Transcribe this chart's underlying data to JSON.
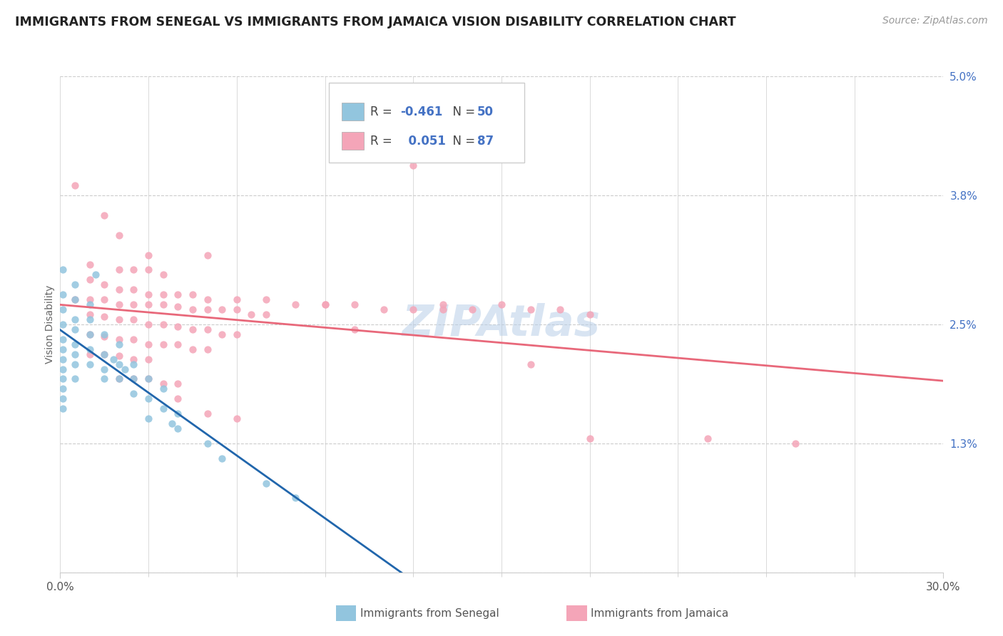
{
  "title": "IMMIGRANTS FROM SENEGAL VS IMMIGRANTS FROM JAMAICA VISION DISABILITY CORRELATION CHART",
  "source": "Source: ZipAtlas.com",
  "ylabel": "Vision Disability",
  "xlim": [
    0.0,
    0.3
  ],
  "ylim": [
    0.0,
    0.05
  ],
  "ytick_vals": [
    0.0,
    0.013,
    0.025,
    0.038,
    0.05
  ],
  "ytick_labels": [
    "",
    "1.3%",
    "2.5%",
    "3.8%",
    "5.0%"
  ],
  "xtick_vals": [
    0.0,
    0.3
  ],
  "xtick_labels": [
    "0.0%",
    "30.0%"
  ],
  "watermark": "ZIPAtlas",
  "senegal_color": "#92c5de",
  "jamaica_color": "#f4a5b8",
  "senegal_line_color": "#2166ac",
  "jamaica_line_color": "#e8687a",
  "R_senegal": -0.461,
  "N_senegal": 50,
  "R_jamaica": 0.051,
  "N_jamaica": 87,
  "senegal_scatter": [
    [
      0.001,
      0.0305
    ],
    [
      0.001,
      0.028
    ],
    [
      0.001,
      0.0265
    ],
    [
      0.001,
      0.025
    ],
    [
      0.001,
      0.0235
    ],
    [
      0.001,
      0.0225
    ],
    [
      0.001,
      0.0215
    ],
    [
      0.001,
      0.0205
    ],
    [
      0.001,
      0.0195
    ],
    [
      0.001,
      0.0185
    ],
    [
      0.001,
      0.0175
    ],
    [
      0.001,
      0.0165
    ],
    [
      0.005,
      0.029
    ],
    [
      0.005,
      0.0275
    ],
    [
      0.005,
      0.0255
    ],
    [
      0.005,
      0.0245
    ],
    [
      0.005,
      0.023
    ],
    [
      0.005,
      0.022
    ],
    [
      0.005,
      0.021
    ],
    [
      0.005,
      0.0195
    ],
    [
      0.01,
      0.027
    ],
    [
      0.01,
      0.0255
    ],
    [
      0.01,
      0.024
    ],
    [
      0.01,
      0.0225
    ],
    [
      0.01,
      0.021
    ],
    [
      0.012,
      0.03
    ],
    [
      0.015,
      0.024
    ],
    [
      0.015,
      0.022
    ],
    [
      0.015,
      0.0205
    ],
    [
      0.015,
      0.0195
    ],
    [
      0.018,
      0.0215
    ],
    [
      0.02,
      0.023
    ],
    [
      0.02,
      0.021
    ],
    [
      0.02,
      0.0195
    ],
    [
      0.022,
      0.0205
    ],
    [
      0.025,
      0.021
    ],
    [
      0.025,
      0.0195
    ],
    [
      0.025,
      0.018
    ],
    [
      0.03,
      0.0195
    ],
    [
      0.03,
      0.0175
    ],
    [
      0.03,
      0.0155
    ],
    [
      0.035,
      0.0185
    ],
    [
      0.035,
      0.0165
    ],
    [
      0.038,
      0.015
    ],
    [
      0.04,
      0.016
    ],
    [
      0.04,
      0.0145
    ],
    [
      0.05,
      0.013
    ],
    [
      0.055,
      0.0115
    ],
    [
      0.07,
      0.009
    ],
    [
      0.08,
      0.0075
    ]
  ],
  "jamaica_scatter": [
    [
      0.005,
      0.039
    ],
    [
      0.015,
      0.036
    ],
    [
      0.02,
      0.034
    ],
    [
      0.03,
      0.032
    ],
    [
      0.05,
      0.032
    ],
    [
      0.01,
      0.031
    ],
    [
      0.02,
      0.0305
    ],
    [
      0.025,
      0.0305
    ],
    [
      0.03,
      0.0305
    ],
    [
      0.035,
      0.03
    ],
    [
      0.01,
      0.0295
    ],
    [
      0.015,
      0.029
    ],
    [
      0.02,
      0.0285
    ],
    [
      0.025,
      0.0285
    ],
    [
      0.03,
      0.028
    ],
    [
      0.035,
      0.028
    ],
    [
      0.04,
      0.028
    ],
    [
      0.045,
      0.028
    ],
    [
      0.05,
      0.0275
    ],
    [
      0.06,
      0.0275
    ],
    [
      0.07,
      0.0275
    ],
    [
      0.08,
      0.027
    ],
    [
      0.09,
      0.027
    ],
    [
      0.1,
      0.027
    ],
    [
      0.11,
      0.0265
    ],
    [
      0.12,
      0.0265
    ],
    [
      0.13,
      0.0265
    ],
    [
      0.005,
      0.0275
    ],
    [
      0.01,
      0.0275
    ],
    [
      0.015,
      0.0275
    ],
    [
      0.02,
      0.027
    ],
    [
      0.025,
      0.027
    ],
    [
      0.03,
      0.027
    ],
    [
      0.035,
      0.027
    ],
    [
      0.04,
      0.0268
    ],
    [
      0.045,
      0.0265
    ],
    [
      0.05,
      0.0265
    ],
    [
      0.055,
      0.0265
    ],
    [
      0.06,
      0.0265
    ],
    [
      0.065,
      0.026
    ],
    [
      0.07,
      0.026
    ],
    [
      0.01,
      0.026
    ],
    [
      0.015,
      0.0258
    ],
    [
      0.02,
      0.0255
    ],
    [
      0.025,
      0.0255
    ],
    [
      0.03,
      0.025
    ],
    [
      0.035,
      0.025
    ],
    [
      0.04,
      0.0248
    ],
    [
      0.045,
      0.0245
    ],
    [
      0.05,
      0.0245
    ],
    [
      0.055,
      0.024
    ],
    [
      0.06,
      0.024
    ],
    [
      0.01,
      0.024
    ],
    [
      0.015,
      0.0238
    ],
    [
      0.02,
      0.0235
    ],
    [
      0.025,
      0.0235
    ],
    [
      0.03,
      0.023
    ],
    [
      0.035,
      0.023
    ],
    [
      0.04,
      0.023
    ],
    [
      0.045,
      0.0225
    ],
    [
      0.05,
      0.0225
    ],
    [
      0.01,
      0.022
    ],
    [
      0.015,
      0.022
    ],
    [
      0.02,
      0.0218
    ],
    [
      0.025,
      0.0215
    ],
    [
      0.03,
      0.0215
    ],
    [
      0.02,
      0.0195
    ],
    [
      0.025,
      0.0195
    ],
    [
      0.03,
      0.0195
    ],
    [
      0.035,
      0.019
    ],
    [
      0.04,
      0.019
    ],
    [
      0.04,
      0.0175
    ],
    [
      0.05,
      0.016
    ],
    [
      0.06,
      0.0155
    ],
    [
      0.12,
      0.041
    ],
    [
      0.16,
      0.021
    ],
    [
      0.18,
      0.0135
    ],
    [
      0.22,
      0.0135
    ],
    [
      0.25,
      0.013
    ],
    [
      0.1,
      0.0245
    ],
    [
      0.09,
      0.027
    ],
    [
      0.13,
      0.027
    ],
    [
      0.15,
      0.027
    ],
    [
      0.14,
      0.0265
    ],
    [
      0.16,
      0.0265
    ],
    [
      0.17,
      0.0265
    ],
    [
      0.18,
      0.026
    ]
  ]
}
